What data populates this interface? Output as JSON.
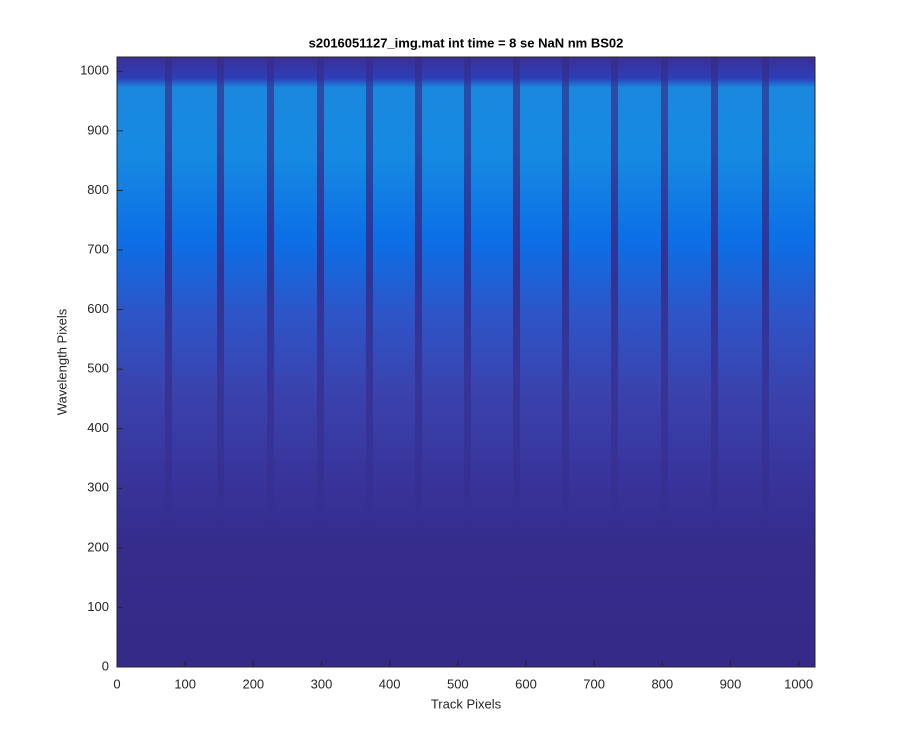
{
  "chart_data": {
    "type": "image",
    "title": "s2016051127_img.mat int time = 8 se  NaN nm BS02",
    "x_label": "Track Pixels",
    "y_label": "Wavelength Pixels",
    "xlim": [
      0,
      1024
    ],
    "ylim": [
      0,
      1024
    ],
    "xticks": [
      0,
      100,
      200,
      300,
      400,
      500,
      600,
      700,
      800,
      900,
      1000
    ],
    "yticks": [
      0,
      100,
      200,
      300,
      400,
      500,
      600,
      700,
      800,
      900,
      1000
    ]
  }
}
